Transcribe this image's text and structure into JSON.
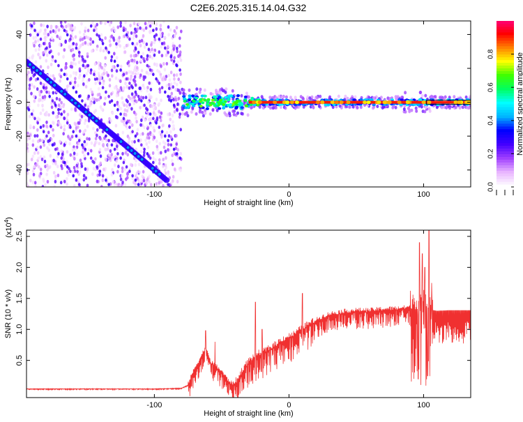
{
  "title": "C2E6.2025.315.14.04.G32",
  "chart_data": [
    {
      "type": "heatmap",
      "title": "C2E6.2025.315.14.04.G32",
      "xlabel": "Height of straight line (km)",
      "ylabel": "Frequency (Hz)",
      "xlim": [
        -195,
        135
      ],
      "ylim": [
        -50,
        48
      ],
      "x_ticks": [
        -100,
        0,
        100
      ],
      "x_tick_labels": [
        "-100",
        "0",
        "100"
      ],
      "y_ticks": [
        -40,
        -20,
        0,
        20,
        40
      ],
      "y_tick_labels": [
        "-40",
        "-20",
        "0",
        "20",
        "40"
      ],
      "noise_region_x": [
        -195,
        -80
      ],
      "diagonal_trace": {
        "x": [
          -195,
          -91
        ],
        "y": [
          24,
          -46
        ]
      },
      "carrier_line": {
        "x": [
          -80,
          135
        ],
        "y": 0
      },
      "colorbar": {
        "label": "Normalized spectral amplitude",
        "range": [
          0,
          1
        ],
        "ticks": [
          0.0,
          0.2,
          0.4,
          0.6,
          0.8
        ],
        "tick_labels": [
          "0.0",
          "0.2",
          "0.4",
          "0.6",
          "0.8"
        ],
        "colors": [
          "#ffffff",
          "#e8b4ff",
          "#a040ff",
          "#4400ff",
          "#0000ff",
          "#00b4ff",
          "#00ffff",
          "#00ff60",
          "#40ff00",
          "#ffff00",
          "#ff8000",
          "#ff0000",
          "#ff0080"
        ]
      }
    },
    {
      "type": "line",
      "xlabel": "Height of straight line (km)",
      "ylabel": "SNR (10 * v/v)",
      "y_scale_label": "(x10",
      "y_scale_exponent": "4",
      "y_scale_suffix": ")",
      "xlim": [
        -195,
        135
      ],
      "ylim": [
        -0.1,
        2.6
      ],
      "x_ticks": [
        -100,
        0,
        100
      ],
      "x_tick_labels": [
        "-100",
        "0",
        "100"
      ],
      "y_ticks": [
        0.5,
        1.0,
        1.5,
        2.0,
        2.5
      ],
      "y_tick_labels": [
        "0.5",
        "1.0",
        "1.5",
        "2.0",
        "2.5"
      ],
      "series": [
        {
          "name": "SNR",
          "color": "#f03030",
          "x": [
            -195,
            -150,
            -100,
            -80,
            -75,
            -70,
            -65,
            -62,
            -60,
            -58,
            -55,
            -50,
            -45,
            -42,
            -38,
            -35,
            -30,
            -25,
            -20,
            -15,
            -10,
            -5,
            0,
            5,
            10,
            15,
            20,
            25,
            30,
            40,
            50,
            60,
            70,
            80,
            85,
            90,
            95,
            100,
            103,
            105,
            110,
            120,
            135
          ],
          "y": [
            0.04,
            0.04,
            0.04,
            0.05,
            0.1,
            0.35,
            0.55,
            0.7,
            0.55,
            0.45,
            0.4,
            0.3,
            0.15,
            0.1,
            0.15,
            0.3,
            0.45,
            0.55,
            0.6,
            0.65,
            0.72,
            0.8,
            0.85,
            0.9,
            1.0,
            1.05,
            1.12,
            1.18,
            1.22,
            1.26,
            1.28,
            1.28,
            1.3,
            1.31,
            1.32,
            1.33,
            1.32,
            1.33,
            1.34,
            1.32,
            1.3,
            1.31,
            1.31
          ],
          "spikes": [
            {
              "x": -62,
              "y": 0.98
            },
            {
              "x": -55,
              "y": 0.8
            },
            {
              "x": -25,
              "y": 1.44
            },
            {
              "x": -20,
              "y": 1.0
            },
            {
              "x": 10,
              "y": 1.58
            },
            {
              "x": 97,
              "y": 2.4
            },
            {
              "x": 99,
              "y": 2.22
            },
            {
              "x": 101,
              "y": 2.0
            },
            {
              "x": 104,
              "y": 2.6
            },
            {
              "x": 106,
              "y": 1.75
            }
          ],
          "dips": [
            {
              "x": 96,
              "y": 0.2
            },
            {
              "x": 103,
              "y": 0.25
            }
          ]
        }
      ]
    }
  ]
}
